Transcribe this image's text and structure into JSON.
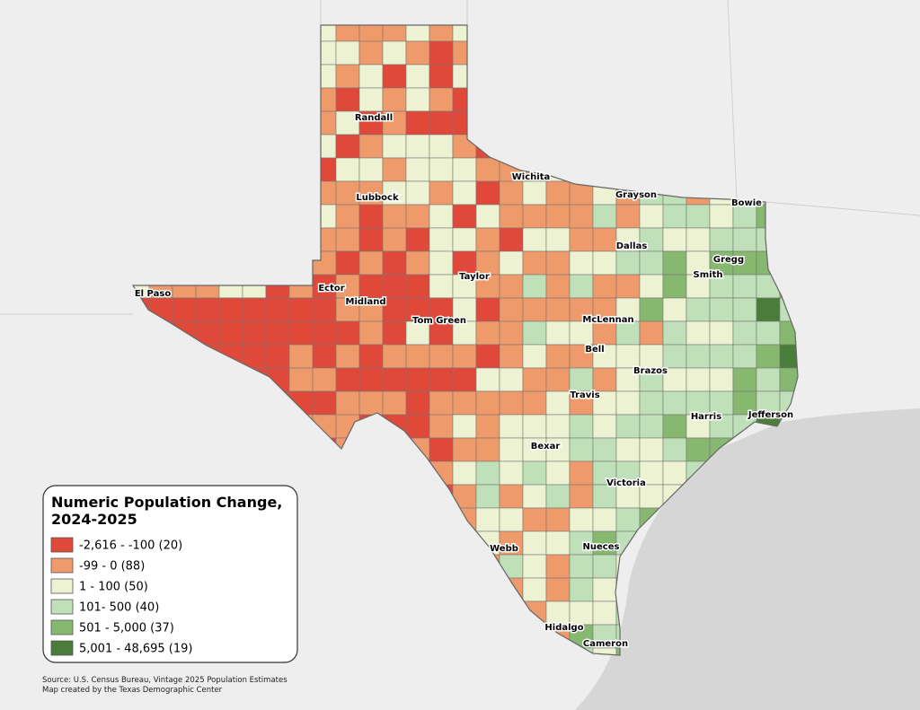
{
  "legend": {
    "title": [
      "Numeric Population Change,",
      "2024-2025"
    ],
    "items": [
      {
        "label": "-2,616 - -100 (20)",
        "color": "#e0483a"
      },
      {
        "label": "-99 - 0 (88)",
        "color": "#ef9a6b"
      },
      {
        "label": "1 - 100 (50)",
        "color": "#edf3d2"
      },
      {
        "label": "101- 500 (40)",
        "color": "#bfe0b8"
      },
      {
        "label": "501 - 5,000 (37)",
        "color": "#86b870"
      },
      {
        "label": "5,001 - 48,695 (19)",
        "color": "#4a7d3a"
      }
    ]
  },
  "counties": [
    "Randall",
    "Lubbock",
    "Wichita",
    "Grayson",
    "Bowie",
    "Dallas",
    "Gregg",
    "Smith",
    "El Paso",
    "Ector",
    "Midland",
    "Taylor",
    "Tom Green",
    "McLennan",
    "Bell",
    "Brazos",
    "Travis",
    "Harris",
    "Jefferson",
    "Bexar",
    "Victoria",
    "Webb",
    "Nueces",
    "Hidalgo",
    "Cameron"
  ],
  "source": [
    "Source: U.S. Census Bureau, Vintage 2025 Population Estimates",
    "Map created by the Texas Demographic Center"
  ]
}
